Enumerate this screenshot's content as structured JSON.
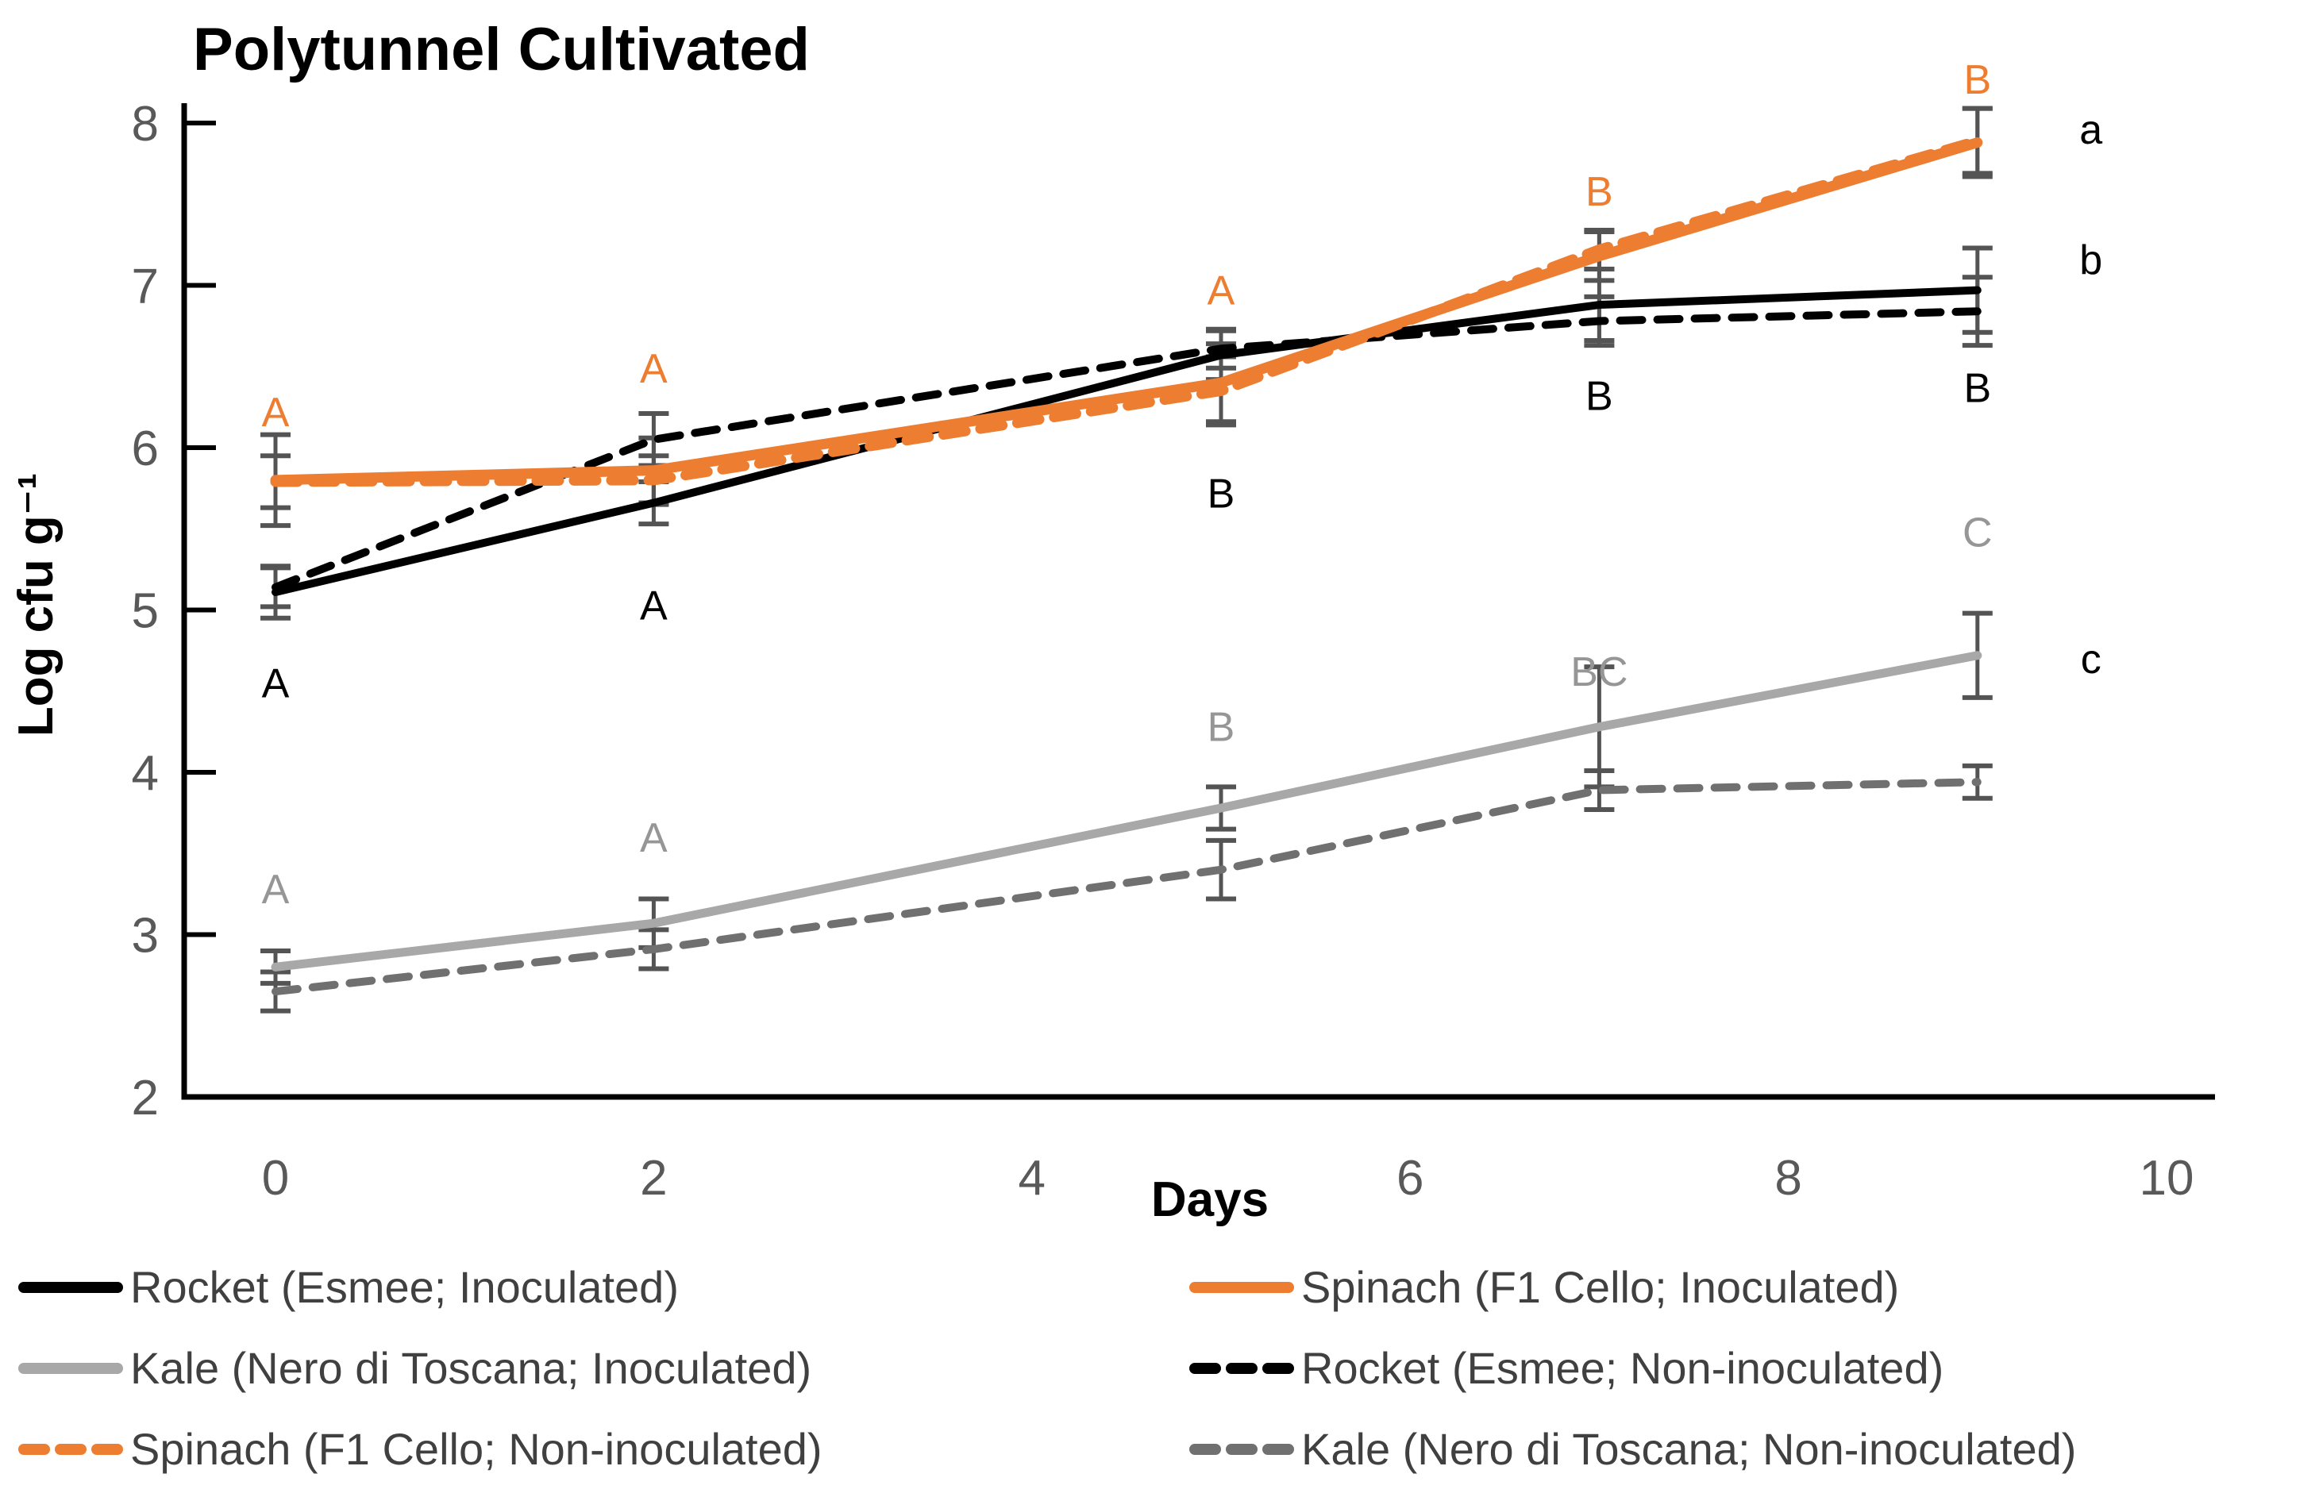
{
  "title": "Polytunnel Cultivated",
  "colors": {
    "accent_orange": "#ED7D31",
    "black": "#000000",
    "kale_solid_gray": "#A8A8A8",
    "kale_dashed_gray": "#707070",
    "error_bar": "#545454",
    "tick_label": "#595959",
    "legend_text": "#404040"
  },
  "chart_data": {
    "type": "line",
    "title": "Polytunnel Cultivated",
    "xlabel": "Days",
    "ylabel": "Log cfu g⁻¹",
    "x": [
      0,
      2,
      5,
      7,
      9
    ],
    "xlim": [
      0,
      10.6
    ],
    "ylim": [
      2,
      8
    ],
    "x_ticks": [
      0,
      2,
      4,
      6,
      8,
      10
    ],
    "y_ticks": [
      8,
      7,
      6,
      5,
      4,
      3,
      2
    ],
    "grid": false,
    "legend_position": "bottom-two-columns",
    "series": [
      {
        "id": "rocket_inoc",
        "name": "Rocket (Esmee; Inoculated)",
        "color": "#000000",
        "style": "solid",
        "width": 10,
        "values": [
          5.11,
          5.66,
          6.57,
          6.88,
          6.97
        ],
        "errors": [
          0.16,
          0.13,
          0.15,
          0.22,
          0.26
        ]
      },
      {
        "id": "spinach_inoc",
        "name": "Spinach (F1 Cello; Inoculated)",
        "color": "#ED7D31",
        "style": "solid",
        "width": 13,
        "values": [
          5.8,
          5.86,
          6.4,
          7.18,
          7.88
        ],
        "errors": [
          0.28,
          0.2,
          0.24,
          0.15,
          0.21
        ]
      },
      {
        "id": "kale_inoc",
        "name": "Kale (Nero di Toscana; Inoculated)",
        "color": "#A8A8A8",
        "style": "solid",
        "width": 11,
        "values": [
          2.8,
          3.07,
          3.78,
          4.28,
          4.72
        ],
        "errors": [
          0.1,
          0.15,
          0.13,
          0.37,
          0.26
        ]
      },
      {
        "id": "rocket_non",
        "name": "Rocket (Esmee; Non-inoculated)",
        "color": "#000000",
        "style": "dashed",
        "width": 10,
        "values": [
          5.14,
          6.05,
          6.61,
          6.78,
          6.84
        ],
        "errors": [
          0.12,
          0.16,
          0.12,
          0.15,
          0.21
        ]
      },
      {
        "id": "spinach_non",
        "name": "Spinach (F1 Cello; Non-inoculated)",
        "color": "#ED7D31",
        "style": "dashed",
        "width": 13,
        "values": [
          5.79,
          5.8,
          6.35,
          7.22,
          7.89
        ],
        "errors": [
          0.16,
          0.15,
          0.21,
          0.12,
          0.2
        ]
      },
      {
        "id": "kale_non",
        "name": "Kale (Nero di Toscana; Non-inoculated)",
        "color": "#707070",
        "style": "dashed",
        "width": 10,
        "values": [
          2.65,
          2.91,
          3.4,
          3.89,
          3.94
        ],
        "errors": [
          0.12,
          0.12,
          0.18,
          0.12,
          0.1
        ]
      }
    ],
    "sig_letters": [
      {
        "group": "spinach",
        "color": "#ED7D31",
        "items": [
          {
            "day": 0,
            "y": 6.22,
            "text": "A"
          },
          {
            "day": 2,
            "y": 6.49,
            "text": "A"
          },
          {
            "day": 5,
            "y": 6.97,
            "text": "A"
          },
          {
            "day": 7,
            "y": 7.58,
            "text": "B"
          },
          {
            "day": 9,
            "y": 8.27,
            "text": "B"
          }
        ]
      },
      {
        "group": "rocket",
        "color": "#000000",
        "items": [
          {
            "day": 0,
            "y": 4.55,
            "text": "A"
          },
          {
            "day": 2,
            "y": 5.03,
            "text": "A"
          },
          {
            "day": 5,
            "y": 5.72,
            "text": "B"
          },
          {
            "day": 7,
            "y": 6.32,
            "text": "B"
          },
          {
            "day": 9,
            "y": 6.37,
            "text": "B"
          }
        ]
      },
      {
        "group": "kale",
        "color": "#969696",
        "items": [
          {
            "day": 0,
            "y": 3.28,
            "text": "A"
          },
          {
            "day": 2,
            "y": 3.6,
            "text": "A"
          },
          {
            "day": 5,
            "y": 4.28,
            "text": "B"
          },
          {
            "day": 7,
            "y": 4.62,
            "text": "BC"
          },
          {
            "day": 9,
            "y": 5.48,
            "text": "C"
          }
        ]
      }
    ],
    "right_letters": {
      "x_day": 9.6,
      "color": "#000000",
      "items": [
        {
          "text": "a",
          "y": 7.96
        },
        {
          "text": "b",
          "y": 7.16
        },
        {
          "text": "c",
          "y": 4.7
        }
      ]
    }
  },
  "legend": {
    "columns": [
      {
        "items": [
          {
            "series": "rocket_inoc",
            "label": "Rocket (Esmee; Inoculated)"
          },
          {
            "series": "kale_inoc",
            "label": "Kale (Nero di Toscana; Inoculated)"
          },
          {
            "series": "spinach_non",
            "label": "Spinach (F1 Cello; Non-inoculated)"
          }
        ]
      },
      {
        "items": [
          {
            "series": "spinach_inoc",
            "label": "Spinach (F1 Cello; Inoculated)"
          },
          {
            "series": "rocket_non",
            "label": "Rocket (Esmee; Non-inoculated)"
          },
          {
            "series": "kale_non",
            "label": "Kale (Nero di Toscana; Non-inoculated)"
          }
        ]
      }
    ]
  }
}
